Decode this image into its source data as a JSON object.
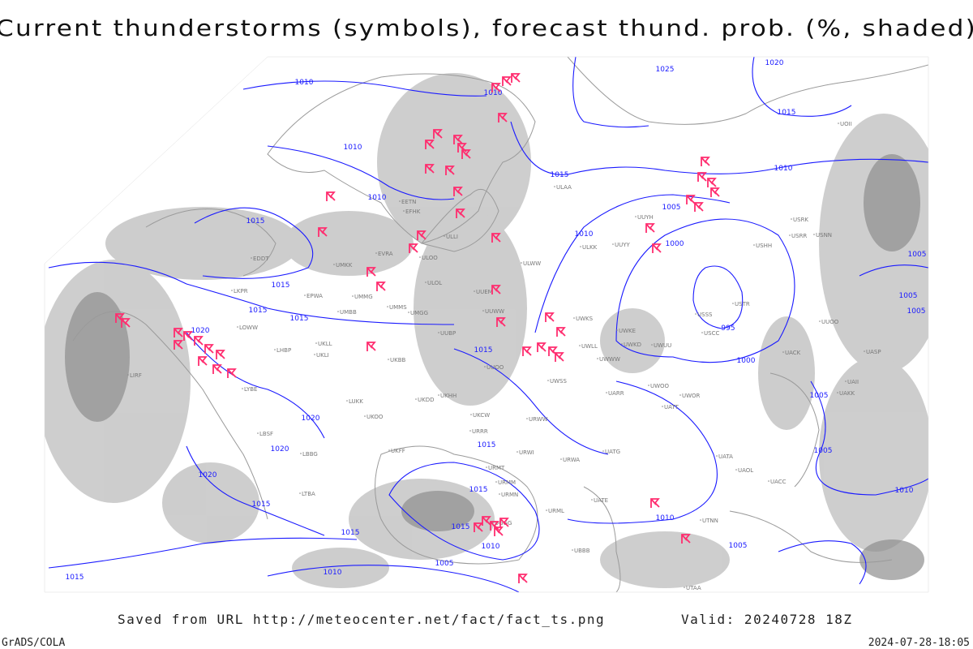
{
  "header": {
    "title": "Current thunderstorms (symbols), forecast thund. prob. (%, shaded)"
  },
  "map": {
    "isobar_labels": [
      "1010",
      "1010",
      "1010",
      "1010",
      "1015",
      "1015",
      "1015",
      "1015",
      "1020",
      "1020",
      "1020",
      "1020",
      "1015",
      "1015",
      "1015",
      "1010",
      "1005",
      "1015",
      "1010",
      "1015",
      "1015",
      "1015",
      "1015",
      "1010",
      "1005",
      "1000",
      "995",
      "1000",
      "1005",
      "1005",
      "1010",
      "1005",
      "1020",
      "1025",
      "1015",
      "1010",
      "1005",
      "1005",
      "1005",
      "1010"
    ],
    "stations": [
      "ULAA",
      "ULKK",
      "UUYY",
      "ULWW",
      "UUEM",
      "UUWW",
      "UWKS",
      "UWKE",
      "UWLL",
      "UWWW",
      "UWKD",
      "UWUU",
      "UUOO",
      "UWSS",
      "UWOO",
      "UWOR",
      "UARR",
      "UATT",
      "URWW",
      "UKCW",
      "URRR",
      "URWI",
      "URWA",
      "UATG",
      "UATA",
      "UAOL",
      "UACC",
      "URMT",
      "URMM",
      "URMN",
      "URML",
      "UATE",
      "UTNN",
      "UGGG",
      "UBBB",
      "UTAA",
      "ULOL",
      "ULOO",
      "EVRA",
      "EETN",
      "EFHK",
      "ULLI",
      "UMKK",
      "UMMG",
      "UMMS",
      "UMGG",
      "UUBP",
      "UMBB",
      "UKBB",
      "UKLL",
      "UKLI",
      "LHBP",
      "LOWW",
      "LKPR",
      "EPWA",
      "EDDT",
      "UKOO",
      "LUKK",
      "UKHH",
      "UKDD",
      "UKFF",
      "LBBG",
      "LTBA",
      "LIRF",
      "LYBE",
      "LBSF",
      "USSS",
      "USCC",
      "USTR",
      "UACK",
      "UASP",
      "USRR",
      "USNN",
      "USRK",
      "USHH",
      "UUOO",
      "UOII",
      "UAKK",
      "UAII",
      "UUYH"
    ]
  },
  "footer": {
    "source": "Saved from URL http://meteocenter.net/fact/fact_ts.png",
    "valid": "Valid: 20240728 18Z",
    "software": "GrADS/COLA",
    "timestamp": "2024-07-28-18:05"
  }
}
